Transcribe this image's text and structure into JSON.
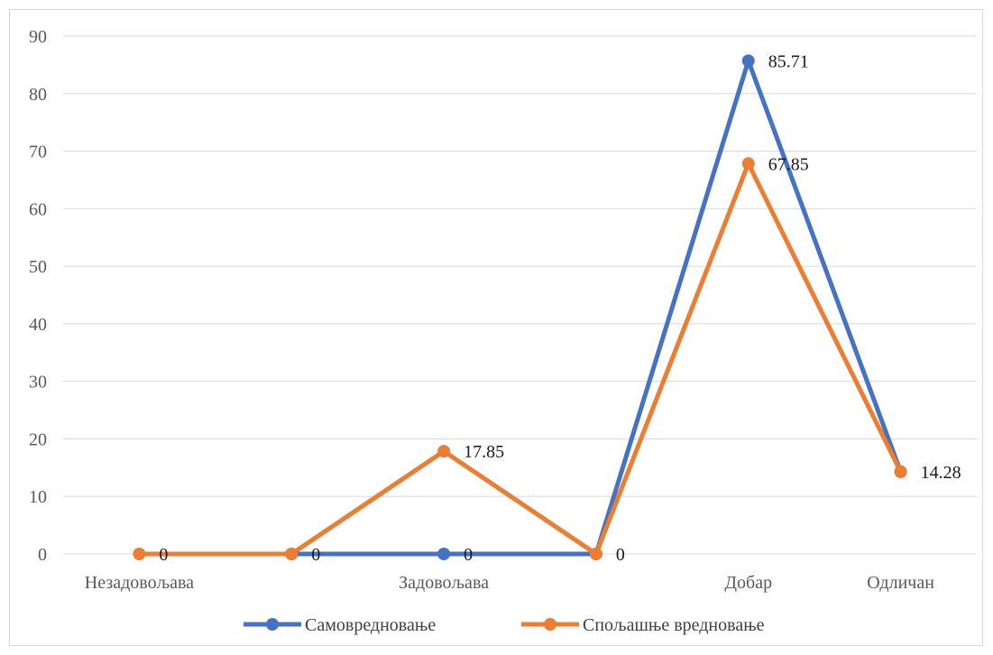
{
  "chart_data": {
    "type": "line",
    "categories": [
      "Незадовољава",
      "",
      "Задовољава",
      "",
      "Добар",
      "Одличан"
    ],
    "ylim": [
      0,
      90
    ],
    "yticks": [
      0,
      10,
      20,
      30,
      40,
      50,
      60,
      70,
      80,
      90
    ],
    "grid": true,
    "legend_position": "bottom",
    "series": [
      {
        "name": "Самовредновање",
        "color": "#4472c4",
        "values": [
          null,
          0,
          0,
          0,
          85.71,
          14.28
        ],
        "labels": [
          "",
          "",
          "0",
          "",
          "85.71",
          ""
        ]
      },
      {
        "name": "Спољашње вредновање",
        "color": "#ed7d31",
        "values": [
          0,
          0,
          17.85,
          0,
          67.85,
          14.28
        ],
        "labels": [
          "0",
          "0",
          "17.85",
          "0",
          "67.85",
          "14.28"
        ]
      }
    ]
  }
}
